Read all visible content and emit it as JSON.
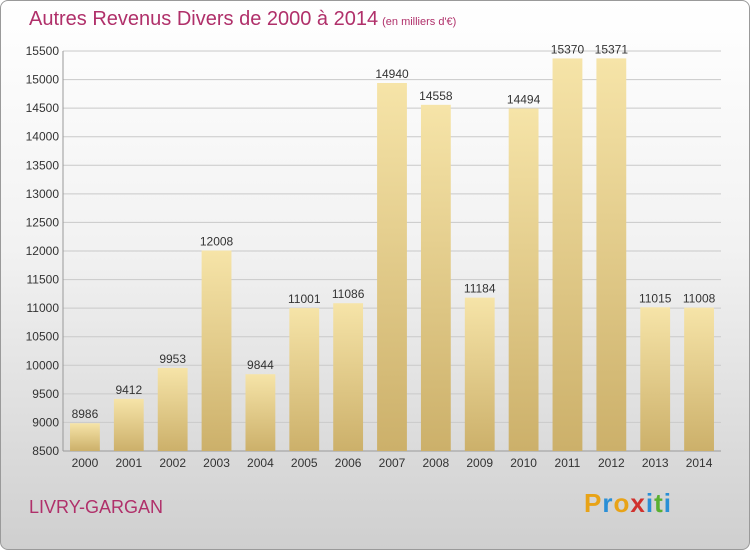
{
  "title": "Autres Revenus Divers de 2000 à 2014",
  "unit": "(en milliers d'€)",
  "city": "LIVRY-GARGAN",
  "logo": {
    "text": "Proxiti",
    "letters": [
      "P",
      "r",
      "o",
      "x",
      "i",
      "t",
      "i"
    ],
    "colors": [
      "#e8a317",
      "#2a8fd6",
      "#e8a317",
      "#d0312d",
      "#2a8fd6",
      "#5ab031",
      "#2a8fd6"
    ]
  },
  "colors": {
    "bar_light": "#f6e4a8",
    "bar_dark": "#ccb06a",
    "title": "#b0306a",
    "grid": "#c9c9c9"
  },
  "chart_data": {
    "type": "bar",
    "categories": [
      "2000",
      "2001",
      "2002",
      "2003",
      "2004",
      "2005",
      "2006",
      "2007",
      "2008",
      "2009",
      "2010",
      "2011",
      "2012",
      "2013",
      "2014"
    ],
    "values": [
      8986,
      9412,
      9953,
      12008,
      9844,
      11001,
      11086,
      14940,
      14558,
      11184,
      14494,
      15370,
      15371,
      11015,
      11008
    ],
    "ylim": [
      8500,
      15500
    ],
    "yticks": [
      8500,
      9000,
      9500,
      10000,
      10500,
      11000,
      11500,
      12000,
      12500,
      13000,
      13500,
      14000,
      14500,
      15000,
      15500
    ],
    "grid": true
  }
}
